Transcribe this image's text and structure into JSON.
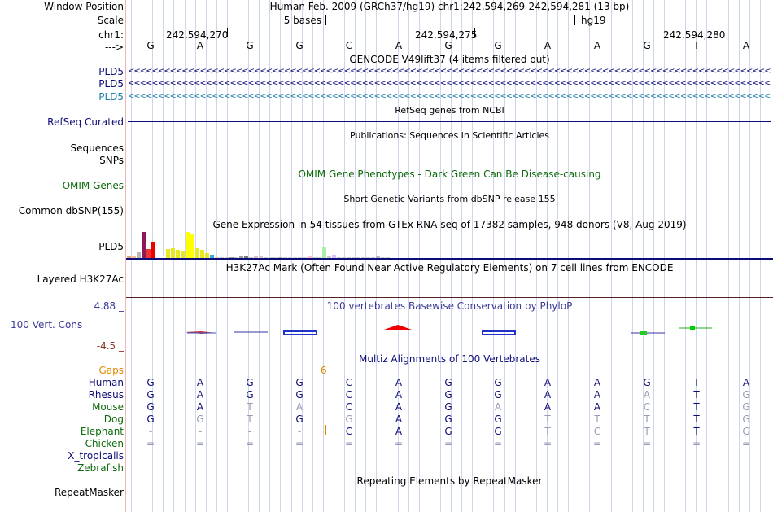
{
  "header": {
    "window_position_label": "Window Position",
    "window_position_value": "Human Feb. 2009 (GRCh37/hg19)   chr1:242,594,269-242,594,281 (13 bp)",
    "scale_label": "Scale",
    "scale_bases": "5 bases",
    "scale_assembly": "hg19",
    "chrom_label": "chr1:",
    "strand_label": "--->",
    "ticks": [
      "242,594,270",
      "242,594,275",
      "242,594,280"
    ]
  },
  "base_sequence": [
    "G",
    "A",
    "G",
    "G",
    "C",
    "A",
    "G",
    "G",
    "A",
    "A",
    "G",
    "T",
    "A"
  ],
  "gencode": {
    "title": "GENCODE V49lift37 (4 items filtered out)",
    "rows": [
      {
        "label": "PLD5",
        "color": "#0c0c78"
      },
      {
        "label": "PLD5",
        "color": "#0c0c78"
      },
      {
        "label": "PLD5",
        "color": "#1a7fa8"
      }
    ],
    "arrow_glyphs": "<<<<<<<<<<<<<<<<<<<<<<<<<<<<<<<<<<<<<<<<<<<<<<<<<<<<<<<<<<<<<<<<<<<<<<<<<<<<<<<<<<<<<<<<<<<<<<<<<<<<<<<<<<<<<<<<<<<<<<<<<<<<<<<<<<<<"
  },
  "refseq": {
    "title": "RefSeq genes from NCBI",
    "label": "RefSeq Curated"
  },
  "publications": {
    "title": "Publications: Sequences in Scientific Articles",
    "label_sequences": "Sequences",
    "label_snps": "SNPs"
  },
  "omim": {
    "title": "OMIM Gene Phenotypes - Dark Green Can Be Disease-causing",
    "label": "OMIM Genes"
  },
  "dbsnp": {
    "title": "Short Genetic Variants from dbSNP release 155",
    "label": "Common dbSNP(155)"
  },
  "gtex": {
    "title": "Gene Expression in 54 tissues from GTEx RNA-seq of 17382 samples, 948 donors (V8, Aug 2019)",
    "label": "PLD5",
    "bars": [
      {
        "v": 0.07,
        "c": "#e6a07a"
      },
      {
        "v": 0.07,
        "c": "#f5c18a"
      },
      {
        "v": 0.25,
        "c": "#b8b8b8"
      },
      {
        "v": 1.0,
        "c": "#8b1a5a"
      },
      {
        "v": 0.35,
        "c": "#ee3333"
      },
      {
        "v": 0.62,
        "c": "#ee0000"
      },
      {
        "v": 0.1,
        "c": "#ffffff"
      },
      {
        "v": 0.1,
        "c": "#ffffff"
      },
      {
        "v": 0.35,
        "c": "#e8e820"
      },
      {
        "v": 0.38,
        "c": "#e8e820"
      },
      {
        "v": 0.32,
        "c": "#e8e820"
      },
      {
        "v": 0.28,
        "c": "#e8e820"
      },
      {
        "v": 1.0,
        "c": "#ffff00"
      },
      {
        "v": 0.92,
        "c": "#ffff00"
      },
      {
        "v": 0.38,
        "c": "#e8e820"
      },
      {
        "v": 0.3,
        "c": "#e8e820"
      },
      {
        "v": 0.18,
        "c": "#e8e820"
      },
      {
        "v": 0.12,
        "c": "#33aadd"
      },
      {
        "v": 0.03,
        "c": "#cccccc"
      },
      {
        "v": 0.03,
        "c": "#cccccc"
      },
      {
        "v": 0.03,
        "c": "#cccccc"
      },
      {
        "v": 0.03,
        "c": "#999999"
      },
      {
        "v": 0.03,
        "c": "#cccccc"
      },
      {
        "v": 0.05,
        "c": "#999999"
      },
      {
        "v": 0.06,
        "c": "#777777"
      },
      {
        "v": 0.04,
        "c": "#cccccc"
      },
      {
        "v": 0.08,
        "c": "#ddbbcc"
      },
      {
        "v": 0.05,
        "c": "#cccccc"
      },
      {
        "v": 0.03,
        "c": "#cccccc"
      },
      {
        "v": 0.03,
        "c": "#cccccc"
      },
      {
        "v": 0.03,
        "c": "#cccccc"
      },
      {
        "v": 0.04,
        "c": "#aaaaaa"
      },
      {
        "v": 0.03,
        "c": "#cccccc"
      },
      {
        "v": 0.03,
        "c": "#cccccc"
      },
      {
        "v": 0.04,
        "c": "#cccccc"
      },
      {
        "v": 0.03,
        "c": "#cccccc"
      },
      {
        "v": 0.03,
        "c": "#cccccc"
      },
      {
        "v": 0.1,
        "c": "#ffbbcc"
      },
      {
        "v": 0.03,
        "c": "#cccccc"
      },
      {
        "v": 0.03,
        "c": "#cccccc"
      },
      {
        "v": 0.45,
        "c": "#aaeeaa"
      },
      {
        "v": 0.05,
        "c": "#cccccc"
      },
      {
        "v": 0.12,
        "c": "#ddbbff"
      },
      {
        "v": 0.04,
        "c": "#cccccc"
      },
      {
        "v": 0.03,
        "c": "#cccccc"
      },
      {
        "v": 0.03,
        "c": "#cccccc"
      },
      {
        "v": 0.03,
        "c": "#cccccc"
      },
      {
        "v": 0.03,
        "c": "#cccccc"
      },
      {
        "v": 0.03,
        "c": "#cccccc"
      },
      {
        "v": 0.03,
        "c": "#cccccc"
      },
      {
        "v": 0.03,
        "c": "#cccccc"
      },
      {
        "v": 0.05,
        "c": "#aabbcc"
      },
      {
        "v": 0.03,
        "c": "#cccccc"
      },
      {
        "v": 0.03,
        "c": "#cccccc"
      }
    ]
  },
  "h3k27ac": {
    "title": "H3K27Ac Mark (Often Found Near Active Regulatory Elements) on 7 cell lines from ENCODE",
    "label": "Layered H3K27Ac"
  },
  "phylop": {
    "title": "100 vertebrates Basewise Conservation by PhyloP",
    "label": "100 Vert. Cons",
    "ymax": "4.88 _",
    "ymin": "-4.5 _"
  },
  "multiz": {
    "title": "Multiz Alignments of 100 Vertebrates",
    "gaps_label": "Gaps",
    "gaps_value": "6",
    "species": [
      {
        "name": "Human",
        "color": "#0c0c78",
        "bases": [
          "G",
          "A",
          "G",
          "G",
          "C",
          "A",
          "G",
          "G",
          "A",
          "A",
          "G",
          "T",
          "A"
        ],
        "faded": []
      },
      {
        "name": "Rhesus",
        "color": "#0c0c78",
        "bases": [
          "G",
          "A",
          "G",
          "G",
          "C",
          "A",
          "G",
          "G",
          "A",
          "A",
          "A",
          "T",
          "G"
        ],
        "faded": [
          10,
          12
        ]
      },
      {
        "name": "Mouse",
        "color": "#0c6a0c",
        "bases": [
          "G",
          "A",
          "T",
          "A",
          "C",
          "A",
          "G",
          "A",
          "A",
          "A",
          "C",
          "T",
          "G"
        ],
        "faded": [
          2,
          3,
          7,
          10,
          12
        ]
      },
      {
        "name": "Dog",
        "color": "#0c6a0c",
        "bases": [
          "G",
          "G",
          "T",
          "G",
          "G",
          "A",
          "G",
          "G",
          "T",
          "T",
          "T",
          "T",
          "G"
        ],
        "faded": [
          1,
          2,
          4,
          8,
          9,
          10,
          12
        ]
      },
      {
        "name": "Elephant",
        "color": "#0c6a0c",
        "bases": [
          "-",
          "-",
          "-",
          "-",
          "C",
          "A",
          "G",
          "G",
          "T",
          "C",
          "T",
          "T",
          "G"
        ],
        "faded": [
          0,
          1,
          2,
          3,
          8,
          9,
          10,
          12
        ]
      },
      {
        "name": "Chicken",
        "color": "#0c6a0c",
        "bases": [
          "=",
          "=",
          "=",
          "=",
          "=",
          "=",
          "=",
          "=",
          "=",
          "=",
          "=",
          "=",
          "="
        ],
        "faded": [
          0,
          1,
          2,
          3,
          4,
          5,
          6,
          7,
          8,
          9,
          10,
          11,
          12
        ]
      },
      {
        "name": "X_tropicalis",
        "color": "#0c0c78",
        "bases": [
          "",
          "",
          "",
          "",
          "",
          "",
          "",
          "",
          "",
          "",
          "",
          "",
          ""
        ],
        "faded": []
      },
      {
        "name": "Zebrafish",
        "color": "#0c6a0c",
        "bases": [
          "",
          "",
          "",
          "",
          "",
          "",
          "",
          "",
          "",
          "",
          "",
          "",
          ""
        ],
        "faded": []
      }
    ]
  },
  "repeatmasker": {
    "title": "Repeating Elements by RepeatMasker",
    "label": "RepeatMasker"
  }
}
